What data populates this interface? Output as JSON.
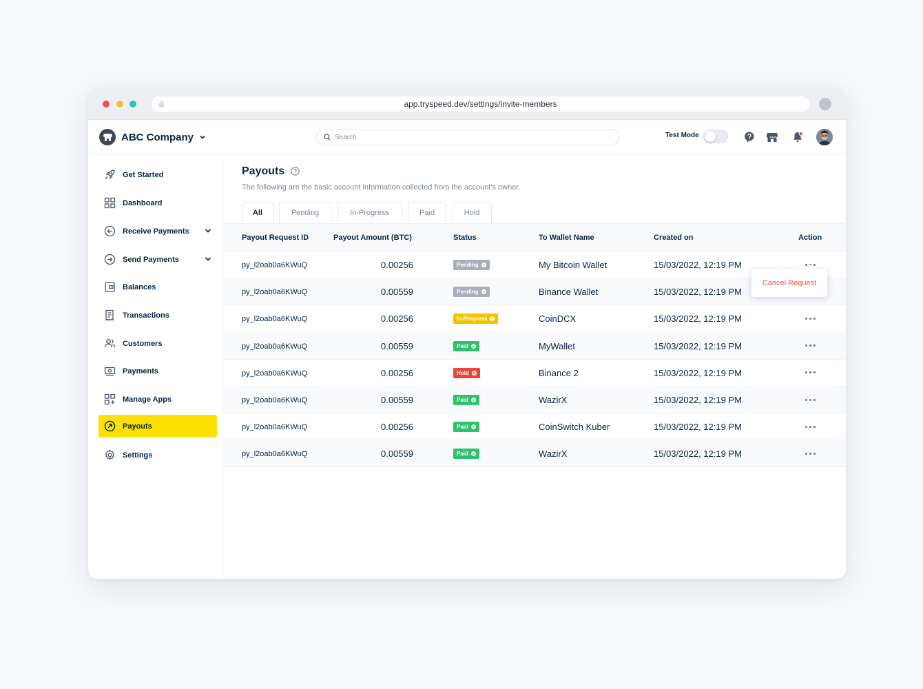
{
  "browser": {
    "url": "app.tryspeed.dev/settings/invite-members"
  },
  "header": {
    "company_name": "ABC Company",
    "search_placeholder": "Search",
    "test_mode_label": "Test Mode",
    "test_mode_on": false
  },
  "sidebar": {
    "items": [
      {
        "label": "Get Started",
        "icon": "rocket-icon"
      },
      {
        "label": "Dashboard",
        "icon": "grid-icon"
      },
      {
        "label": "Receive Payments",
        "icon": "arrow-in-circle-icon",
        "expandable": true
      },
      {
        "label": "Send Payments",
        "icon": "arrow-out-circle-icon",
        "expandable": true
      },
      {
        "label": "Balances",
        "icon": "wallet-icon"
      },
      {
        "label": "Transactions",
        "icon": "receipt-icon"
      },
      {
        "label": "Customers",
        "icon": "users-icon"
      },
      {
        "label": "Payments",
        "icon": "cash-icon"
      },
      {
        "label": "Manage Apps",
        "icon": "apps-add-icon"
      },
      {
        "label": "Payouts",
        "icon": "payout-icon",
        "active": true
      },
      {
        "label": "Settings",
        "icon": "gear-icon"
      }
    ]
  },
  "page": {
    "title": "Payouts",
    "subtitle": "The following are the basic account information collected from the account's owner.",
    "tabs": [
      "All",
      "Pending",
      "In-Progress",
      "Paid",
      "Hold"
    ],
    "active_tab": "All"
  },
  "table": {
    "columns": [
      "Payout Request ID",
      "Payout Amount (BTC)",
      "Status",
      "To Wallet Name",
      "Created on",
      "Action"
    ],
    "rows": [
      {
        "id": "py_l2oab0a6KWuQ",
        "amount": "0.00256",
        "status": "Pending",
        "wallet": "My Bitcoin Wallet",
        "created": "15/03/2022, 12:19 PM"
      },
      {
        "id": "py_l2oab0a6KWuQ",
        "amount": "0.00559",
        "status": "Pending",
        "wallet": "Binance Wallet",
        "created": "15/03/2022, 12:19 PM"
      },
      {
        "id": "py_l2oab0a6KWuQ",
        "amount": "0.00256",
        "status": "In-Progress",
        "wallet": "CoinDCX",
        "created": "15/03/2022, 12:19 PM"
      },
      {
        "id": "py_l2oab0a6KWuQ",
        "amount": "0.00559",
        "status": "Paid",
        "wallet": "MyWallet",
        "created": "15/03/2022, 12:19 PM"
      },
      {
        "id": "py_l2oab0a6KWuQ",
        "amount": "0.00256",
        "status": "Hold",
        "wallet": "Binance 2",
        "created": "15/03/2022, 12:19 PM"
      },
      {
        "id": "py_l2oab0a6KWuQ",
        "amount": "0.00559",
        "status": "Paid",
        "wallet": "WazirX",
        "created": "15/03/2022, 12:19 PM"
      },
      {
        "id": "py_l2oab0a6KWuQ",
        "amount": "0.00256",
        "status": "Paid",
        "wallet": "CoinSwitch Kuber",
        "created": "15/03/2022, 12:19 PM"
      },
      {
        "id": "py_l2oab0a6KWuQ",
        "amount": "0.00559",
        "status": "Paid",
        "wallet": "WazirX",
        "created": "15/03/2022, 12:19 PM"
      }
    ]
  },
  "action_menu": {
    "cancel_label": "Cancel Request"
  },
  "colors": {
    "accent": "#fbe002",
    "pending": "#a9aeb8",
    "in_progress": "#f5c400",
    "paid": "#2fc16d",
    "hold": "#e8453c",
    "cancel": "#e9573f"
  }
}
